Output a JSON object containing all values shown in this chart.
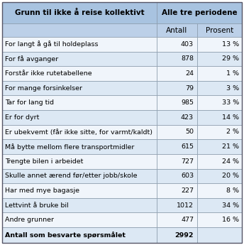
{
  "title_col1": "Grunn til ikke å reise kollektivt",
  "title_col2": "Alle tre periodene",
  "subtitle_col2": "Antall",
  "subtitle_col3": "Prosent",
  "rows": [
    {
      "label": "For langt å gå til holdeplass",
      "antall": "403",
      "prosent": "13 %"
    },
    {
      "label": "For få avganger",
      "antall": "878",
      "prosent": "29 %"
    },
    {
      "label": "Forstår ikke rutetabellene",
      "antall": "24",
      "prosent": "1 %"
    },
    {
      "label": "For mange forsinkelser",
      "antall": "79",
      "prosent": "3 %"
    },
    {
      "label": "Tar for lang tid",
      "antall": "985",
      "prosent": "33 %"
    },
    {
      "label": "Er for dyrt",
      "antall": "423",
      "prosent": "14 %"
    },
    {
      "label": "Er ubekvemt (får ikke sitte, for varmt/kaldt)",
      "antall": "50",
      "prosent": "2 %"
    },
    {
      "label": "Må bytte mellom flere transportmidler",
      "antall": "615",
      "prosent": "21 %"
    },
    {
      "label": "Trengte bilen i arbeidet",
      "antall": "727",
      "prosent": "24 %"
    },
    {
      "label": "Skulle annet ærend før/etter jobb/skole",
      "antall": "603",
      "prosent": "20 %"
    },
    {
      "label": "Har med mye bagasje",
      "antall": "227",
      "prosent": "8 %"
    },
    {
      "label": "Lettvint å bruke bil",
      "antall": "1012",
      "prosent": "34 %"
    },
    {
      "label": "Andre grunner",
      "antall": "477",
      "prosent": "16 %"
    }
  ],
  "footer": {
    "label": "Antall som besvarte spørsmålet",
    "antall": "2992",
    "prosent": ""
  },
  "header_bg": "#a8c3e0",
  "subheader_bg": "#bcd0e8",
  "row_bg_light": "#dce8f4",
  "row_bg_white": "#f0f5fb",
  "footer_bg": "#dce8f4",
  "border_color": "#8899aa",
  "text_color": "#000000",
  "font_size": 6.8,
  "header_font_size": 7.5
}
